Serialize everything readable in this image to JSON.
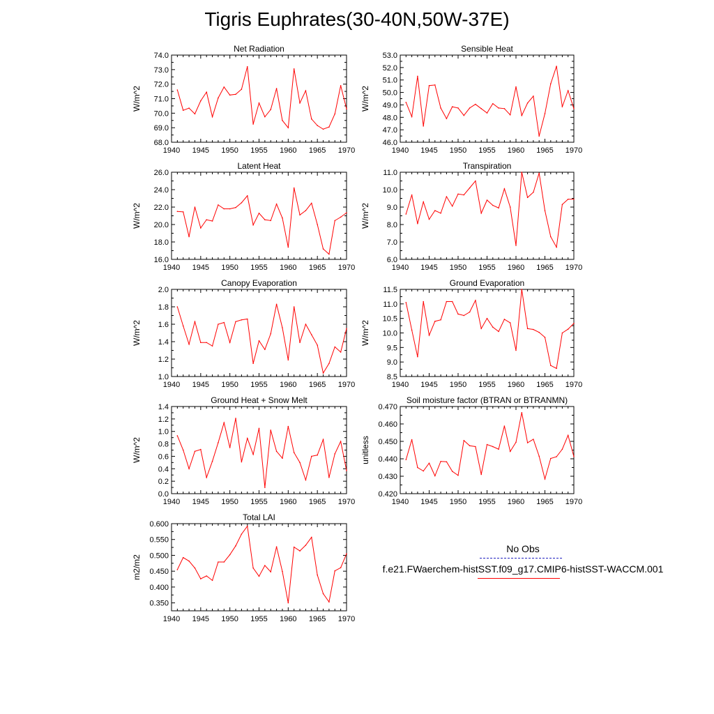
{
  "title": "Tigris Euphrates(30-40N,50W-37E)",
  "colors": {
    "series": "#ff0000",
    "obs": "#1f1fbf"
  },
  "chart_data": [
    {
      "type": "line",
      "title": "Net Radiation",
      "ylabel": "W/m^2",
      "xlim": [
        1940,
        1970
      ],
      "ylim": [
        68,
        74
      ],
      "xticks": [
        1940,
        1945,
        1950,
        1955,
        1960,
        1965,
        1970
      ],
      "yticks": [
        68,
        69,
        70,
        71,
        72,
        73,
        74
      ],
      "ytick_labels": [
        "68.0",
        "69.0",
        "70.0",
        "71.0",
        "72.0",
        "73.0",
        "74.0"
      ],
      "x": [
        1941,
        1942,
        1943,
        1944,
        1945,
        1946,
        1947,
        1948,
        1949,
        1950,
        1951,
        1952,
        1953,
        1954,
        1955,
        1956,
        1957,
        1958,
        1959,
        1960,
        1961,
        1962,
        1963,
        1964,
        1965,
        1966,
        1967,
        1968,
        1969,
        1970
      ],
      "y": [
        71.6,
        70.2,
        70.35,
        69.95,
        70.85,
        71.45,
        69.75,
        71.05,
        71.8,
        71.25,
        71.3,
        71.65,
        73.2,
        69.25,
        70.7,
        69.75,
        70.25,
        71.7,
        69.5,
        69.0,
        73.05,
        70.7,
        71.55,
        69.6,
        69.15,
        68.9,
        69.05,
        69.95,
        71.9,
        70.3
      ]
    },
    {
      "type": "line",
      "title": "Sensible Heat",
      "ylabel": "W/m^2",
      "xlim": [
        1940,
        1970
      ],
      "ylim": [
        46,
        53
      ],
      "xticks": [
        1940,
        1945,
        1950,
        1955,
        1960,
        1965,
        1970
      ],
      "yticks": [
        46,
        47,
        48,
        49,
        50,
        51,
        52,
        53
      ],
      "ytick_labels": [
        "46.0",
        "47.0",
        "48.0",
        "49.0",
        "50.0",
        "51.0",
        "52.0",
        "53.0"
      ],
      "x": [
        1941,
        1942,
        1943,
        1944,
        1945,
        1946,
        1947,
        1948,
        1949,
        1950,
        1951,
        1952,
        1953,
        1954,
        1955,
        1956,
        1957,
        1958,
        1959,
        1960,
        1961,
        1962,
        1963,
        1964,
        1965,
        1966,
        1967,
        1968,
        1969,
        1970
      ],
      "y": [
        49.2,
        48.05,
        51.3,
        47.3,
        50.55,
        50.6,
        48.75,
        47.9,
        48.85,
        48.75,
        48.15,
        48.75,
        49.05,
        48.7,
        48.35,
        49.1,
        48.75,
        48.7,
        48.2,
        50.45,
        48.15,
        49.15,
        49.7,
        46.5,
        48.3,
        50.7,
        52.1,
        48.85,
        50.15,
        48.7
      ]
    },
    {
      "type": "line",
      "title": "Latent Heat",
      "ylabel": "W/m^2",
      "xlim": [
        1940,
        1970
      ],
      "ylim": [
        16,
        26
      ],
      "xticks": [
        1940,
        1945,
        1950,
        1955,
        1960,
        1965,
        1970
      ],
      "yticks": [
        16,
        18,
        20,
        22,
        24,
        26
      ],
      "ytick_labels": [
        "16.0",
        "18.0",
        "20.0",
        "22.0",
        "24.0",
        "26.0"
      ],
      "x": [
        1941,
        1942,
        1943,
        1944,
        1945,
        1946,
        1947,
        1948,
        1949,
        1950,
        1951,
        1952,
        1953,
        1954,
        1955,
        1956,
        1957,
        1958,
        1959,
        1960,
        1961,
        1962,
        1963,
        1964,
        1965,
        1966,
        1967,
        1968,
        1969,
        1970
      ],
      "y": [
        21.5,
        21.45,
        18.6,
        22.0,
        19.6,
        20.55,
        20.4,
        22.25,
        21.8,
        21.8,
        21.95,
        22.5,
        23.3,
        19.95,
        21.3,
        20.55,
        20.45,
        22.35,
        20.75,
        17.4,
        24.2,
        21.1,
        21.6,
        22.45,
        20.0,
        17.2,
        16.6,
        20.45,
        20.85,
        21.35
      ]
    },
    {
      "type": "line",
      "title": "Transpiration",
      "ylabel": "W/m^2",
      "xlim": [
        1940,
        1970
      ],
      "ylim": [
        6,
        11
      ],
      "xticks": [
        1940,
        1945,
        1950,
        1955,
        1960,
        1965,
        1970
      ],
      "yticks": [
        6,
        7,
        8,
        9,
        10,
        11
      ],
      "ytick_labels": [
        "6.0",
        "7.0",
        "8.0",
        "9.0",
        "10.0",
        "11.0"
      ],
      "x": [
        1941,
        1942,
        1943,
        1944,
        1945,
        1946,
        1947,
        1948,
        1949,
        1950,
        1951,
        1952,
        1953,
        1954,
        1955,
        1956,
        1957,
        1958,
        1959,
        1960,
        1961,
        1962,
        1963,
        1964,
        1965,
        1966,
        1967,
        1968,
        1969,
        1970
      ],
      "y": [
        8.6,
        9.7,
        8.05,
        9.3,
        8.3,
        8.8,
        8.65,
        9.6,
        9.05,
        9.75,
        9.7,
        10.1,
        10.5,
        8.65,
        9.4,
        9.1,
        8.95,
        10.05,
        9.0,
        6.8,
        11.0,
        9.55,
        9.85,
        10.95,
        8.8,
        7.3,
        6.7,
        9.15,
        9.45,
        9.45
      ]
    },
    {
      "type": "line",
      "title": "Canopy Evaporation",
      "ylabel": "W/m^2",
      "xlim": [
        1940,
        1970
      ],
      "ylim": [
        1.0,
        2.0
      ],
      "xticks": [
        1940,
        1945,
        1950,
        1955,
        1960,
        1965,
        1970
      ],
      "yticks": [
        1.0,
        1.2,
        1.4,
        1.6,
        1.8,
        2.0
      ],
      "ytick_labels": [
        "1.0",
        "1.2",
        "1.4",
        "1.6",
        "1.8",
        "2.0"
      ],
      "x": [
        1941,
        1942,
        1943,
        1944,
        1945,
        1946,
        1947,
        1948,
        1949,
        1950,
        1951,
        1952,
        1953,
        1954,
        1955,
        1956,
        1957,
        1958,
        1959,
        1960,
        1961,
        1962,
        1963,
        1964,
        1965,
        1966,
        1967,
        1968,
        1969,
        1970
      ],
      "y": [
        1.8,
        1.58,
        1.37,
        1.63,
        1.39,
        1.39,
        1.35,
        1.6,
        1.62,
        1.39,
        1.63,
        1.65,
        1.66,
        1.15,
        1.41,
        1.31,
        1.49,
        1.83,
        1.56,
        1.19,
        1.8,
        1.39,
        1.6,
        1.48,
        1.36,
        1.04,
        1.15,
        1.34,
        1.28,
        1.55
      ]
    },
    {
      "type": "line",
      "title": "Ground Evaporation",
      "ylabel": "W/m^2",
      "xlim": [
        1940,
        1970
      ],
      "ylim": [
        8.5,
        11.5
      ],
      "xticks": [
        1940,
        1945,
        1950,
        1955,
        1960,
        1965,
        1970
      ],
      "yticks": [
        8.5,
        9.0,
        9.5,
        10.0,
        10.5,
        11.0,
        11.5
      ],
      "ytick_labels": [
        "8.5",
        "9.0",
        "9.5",
        "10.0",
        "10.5",
        "11.0",
        "11.5"
      ],
      "x": [
        1941,
        1942,
        1943,
        1944,
        1945,
        1946,
        1947,
        1948,
        1949,
        1950,
        1951,
        1952,
        1953,
        1954,
        1955,
        1956,
        1957,
        1958,
        1959,
        1960,
        1961,
        1962,
        1963,
        1964,
        1965,
        1966,
        1967,
        1968,
        1969,
        1970
      ],
      "y": [
        11.05,
        10.1,
        9.18,
        11.08,
        9.92,
        10.4,
        10.45,
        11.08,
        11.08,
        10.65,
        10.6,
        10.72,
        11.12,
        10.15,
        10.5,
        10.2,
        10.05,
        10.47,
        10.35,
        9.4,
        11.5,
        10.15,
        10.12,
        10.02,
        9.85,
        8.88,
        8.78,
        10.0,
        10.13,
        10.33
      ]
    },
    {
      "type": "line",
      "title": "Ground Heat + Snow Melt",
      "ylabel": "W/m^2",
      "xlim": [
        1940,
        1970
      ],
      "ylim": [
        0.0,
        1.4
      ],
      "xticks": [
        1940,
        1945,
        1950,
        1955,
        1960,
        1965,
        1970
      ],
      "yticks": [
        0.0,
        0.2,
        0.4,
        0.6,
        0.8,
        1.0,
        1.2,
        1.4
      ],
      "ytick_labels": [
        "0.0",
        "0.2",
        "0.4",
        "0.6",
        "0.8",
        "1.0",
        "1.2",
        "1.4"
      ],
      "x": [
        1941,
        1942,
        1943,
        1944,
        1945,
        1946,
        1947,
        1948,
        1949,
        1950,
        1951,
        1952,
        1953,
        1954,
        1955,
        1956,
        1957,
        1958,
        1959,
        1960,
        1961,
        1962,
        1963,
        1964,
        1965,
        1966,
        1967,
        1968,
        1969,
        1970
      ],
      "y": [
        0.93,
        0.7,
        0.4,
        0.68,
        0.71,
        0.26,
        0.52,
        0.82,
        1.14,
        0.74,
        1.21,
        0.51,
        0.89,
        0.63,
        1.05,
        0.1,
        1.02,
        0.68,
        0.57,
        1.08,
        0.66,
        0.5,
        0.22,
        0.6,
        0.62,
        0.87,
        0.26,
        0.64,
        0.84,
        0.37
      ]
    },
    {
      "type": "line",
      "title": "Soil moisture factor (BTRAN or BTRANMN)",
      "ylabel": "unitless",
      "xlim": [
        1940,
        1970
      ],
      "ylim": [
        0.42,
        0.47
      ],
      "xticks": [
        1940,
        1945,
        1950,
        1955,
        1960,
        1965,
        1970
      ],
      "yticks": [
        0.42,
        0.43,
        0.44,
        0.45,
        0.46,
        0.47
      ],
      "ytick_labels": [
        "0.420",
        "0.430",
        "0.440",
        "0.450",
        "0.460",
        "0.470"
      ],
      "x": [
        1941,
        1942,
        1943,
        1944,
        1945,
        1946,
        1947,
        1948,
        1949,
        1950,
        1951,
        1952,
        1953,
        1954,
        1955,
        1956,
        1957,
        1958,
        1959,
        1960,
        1961,
        1962,
        1963,
        1964,
        1965,
        1966,
        1967,
        1968,
        1969,
        1970
      ],
      "y": [
        0.4395,
        0.451,
        0.435,
        0.433,
        0.4375,
        0.4302,
        0.4385,
        0.4383,
        0.4328,
        0.4305,
        0.4505,
        0.4475,
        0.447,
        0.431,
        0.4482,
        0.447,
        0.4455,
        0.4588,
        0.4442,
        0.4495,
        0.4665,
        0.4492,
        0.4512,
        0.4415,
        0.4284,
        0.4402,
        0.4412,
        0.4455,
        0.4535,
        0.4413
      ]
    },
    {
      "type": "line",
      "title": "Total LAI",
      "ylabel": "m2/m2",
      "xlim": [
        1940,
        1970
      ],
      "ylim": [
        0.325,
        0.6
      ],
      "xticks": [
        1940,
        1945,
        1950,
        1955,
        1960,
        1965,
        1970
      ],
      "yticks": [
        0.35,
        0.4,
        0.45,
        0.5,
        0.55,
        0.6
      ],
      "ytick_labels": [
        "0.350",
        "0.400",
        "0.450",
        "0.500",
        "0.550",
        "0.600"
      ],
      "x": [
        1941,
        1942,
        1943,
        1944,
        1945,
        1946,
        1947,
        1948,
        1949,
        1950,
        1951,
        1952,
        1953,
        1954,
        1955,
        1956,
        1957,
        1958,
        1959,
        1960,
        1961,
        1962,
        1963,
        1964,
        1965,
        1966,
        1967,
        1968,
        1969,
        1970
      ],
      "y": [
        0.455,
        0.493,
        0.482,
        0.46,
        0.426,
        0.435,
        0.421,
        0.479,
        0.479,
        0.502,
        0.53,
        0.567,
        0.592,
        0.46,
        0.434,
        0.468,
        0.448,
        0.527,
        0.449,
        0.35,
        0.526,
        0.514,
        0.532,
        0.557,
        0.438,
        0.379,
        0.353,
        0.451,
        0.461,
        0.505
      ]
    }
  ],
  "legend": {
    "items": [
      {
        "label": "No Obs",
        "style": "dashed",
        "color": "#1f1fbf"
      },
      {
        "label": "f.e21.FWaerchem-histSST.f09_g17.CMIP6-histSST-WACCM.001",
        "style": "solid",
        "color": "#ff0000"
      }
    ]
  }
}
